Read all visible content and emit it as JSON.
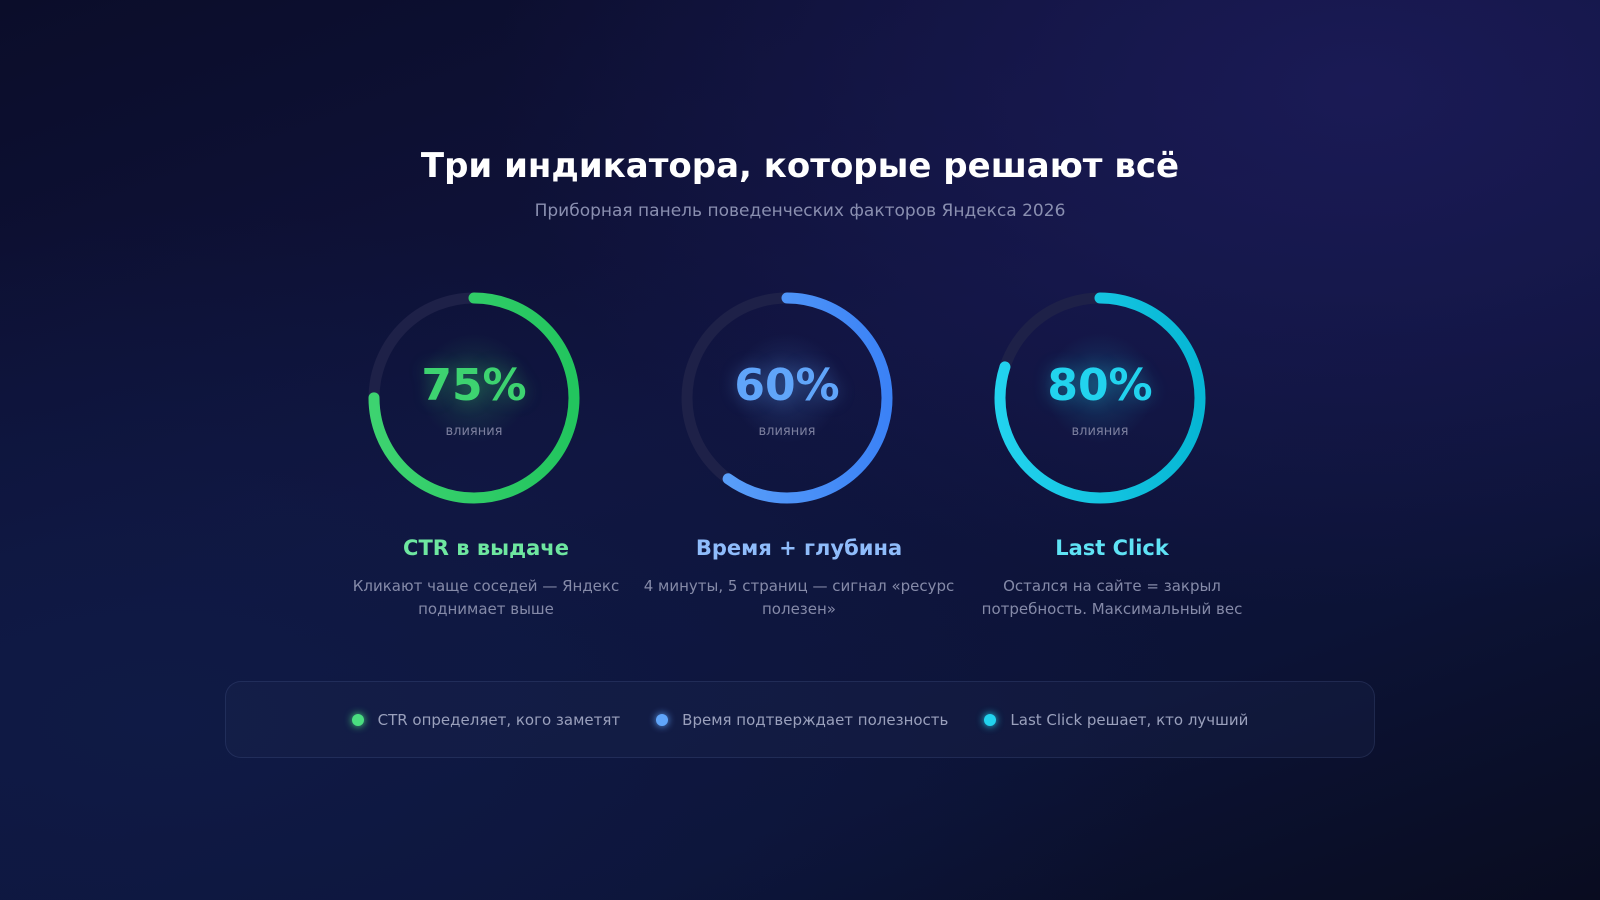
{
  "header": {
    "title": "Три индикатора, которые решают всё",
    "subtitle": "Приборная панель поведенческих факторов Яндекса 2026"
  },
  "indicators": [
    {
      "value": 75,
      "percent": "75%",
      "label": "влияния",
      "title": "CTR в выдаче",
      "description": "Кликают чаще соседей — Яндекс поднимает выше",
      "color": "#3dd370",
      "color2": "#22c55e",
      "title_color": "#6ee7a0"
    },
    {
      "value": 60,
      "percent": "60%",
      "label": "влияния",
      "title": "Время + глубина",
      "description": "4 минуты, 5 страниц — сигнал «ресурс полезен»",
      "color": "#60a5fa",
      "color2": "#3b82f6",
      "title_color": "#8fbcfb"
    },
    {
      "value": 80,
      "percent": "80%",
      "label": "влияния",
      "title": "Last Click",
      "description": "Остался на сайте = закрыл потребность. Максимальный вес",
      "color": "#22d3ee",
      "color2": "#06b6d4",
      "title_color": "#5fe3f5"
    }
  ],
  "legend": [
    {
      "text": "CTR определяет, кого заметят",
      "color": "#4ade80"
    },
    {
      "text": "Время подтверждает полезность",
      "color": "#60a5fa"
    },
    {
      "text": "Last Click решает, кто лучший",
      "color": "#22d3ee"
    }
  ]
}
